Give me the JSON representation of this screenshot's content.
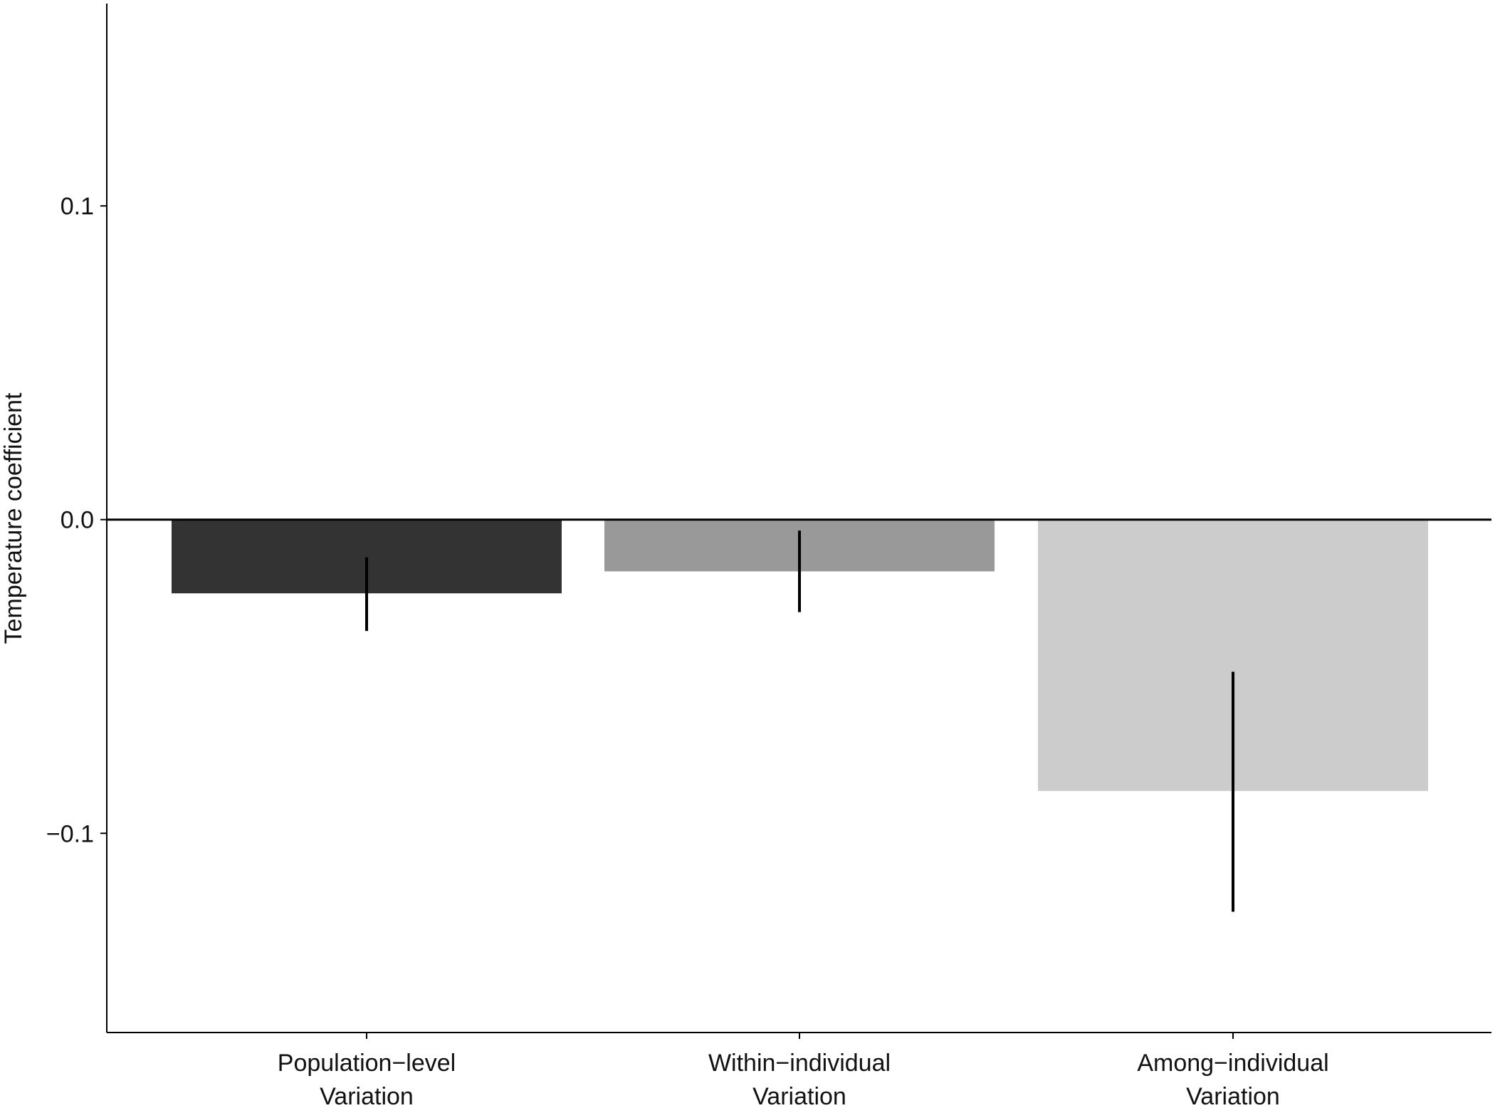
{
  "chart_data": {
    "type": "bar",
    "title": "",
    "xlabel": "",
    "ylabel": "Temperature coefficient",
    "categories": [
      [
        "Population−level",
        "Variation"
      ],
      [
        "Within−individual",
        "Variation"
      ],
      [
        "Among−individual",
        "Variation"
      ]
    ],
    "values": [
      -0.0235,
      -0.0165,
      -0.0865
    ],
    "error_bars": [
      {
        "low": -0.0355,
        "high": -0.012
      },
      {
        "low": -0.0295,
        "high": -0.0035
      },
      {
        "low": -0.125,
        "high": -0.0485
      }
    ],
    "bar_colors": [
      "#333333",
      "#999999",
      "#cccccc"
    ],
    "ylim": [
      -0.1635,
      0.1645
    ],
    "yticks": [
      0.1,
      0.0,
      -0.1
    ],
    "ytick_labels": [
      "0.1",
      "0.0",
      "−0.1"
    ],
    "reference_line": 0.0,
    "grid": false,
    "legend": "none"
  }
}
